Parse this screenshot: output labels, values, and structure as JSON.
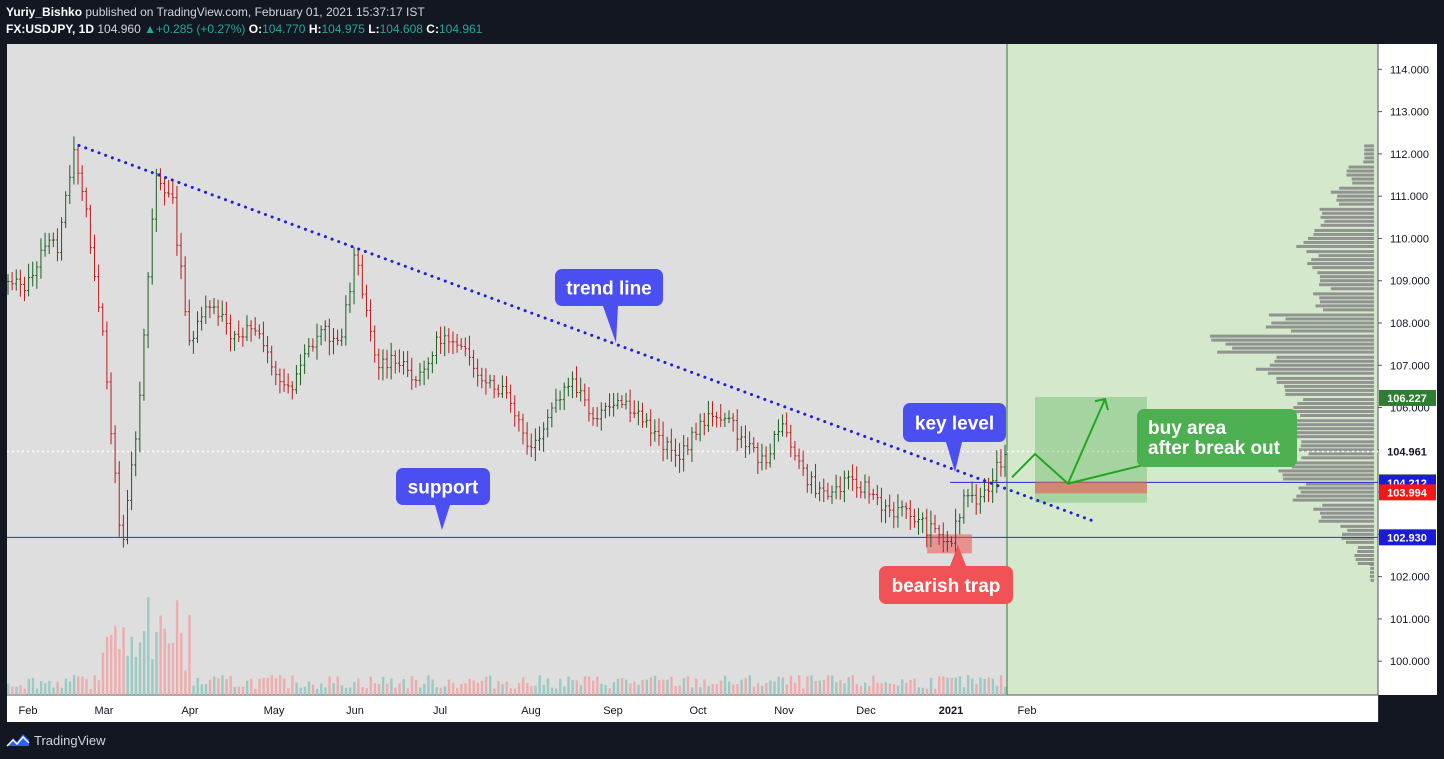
{
  "header": {
    "author": "Yuriy_Bishko",
    "published": " published on TradingView.com, February 01, 2021 15:37:17 IST",
    "symbol": "FX:USDJPY, 1D",
    "last": "104.960",
    "change": "+0.285 (+0.27%)",
    "o_label": "O:",
    "o": "104.770",
    "h_label": "H:",
    "h": "104.975",
    "l_label": "L:",
    "l": "104.608",
    "c_label": "C:",
    "c": "104.961"
  },
  "footer": {
    "brand": "TradingView"
  },
  "colors": {
    "background": "#131722",
    "plot": "#dedede",
    "future_zone": "#d4e8cc",
    "candle_up": "#1b5e20",
    "candle_down": "#b71c1c",
    "trend": "#1f20d6",
    "support_line": "#2a2ad8",
    "callout_blue": "#4b4ef0",
    "callout_red": "#f05255",
    "callout_green": "#4caf50"
  },
  "chart_data": {
    "type": "candlestick",
    "symbol": "FX:USDJPY",
    "timeframe": "1D",
    "ylim": [
      99.2,
      114.6
    ],
    "x_labels": [
      "Feb",
      "Mar",
      "Apr",
      "May",
      "Jun",
      "Jul",
      "Aug",
      "Sep",
      "Oct",
      "Nov",
      "Dec",
      "2021",
      "Feb"
    ],
    "y_ticks": [
      "100.000",
      "101.000",
      "102.000",
      "103.000",
      "104.000",
      "105.000",
      "106.000",
      "107.000",
      "108.000",
      "109.000",
      "110.000",
      "111.000",
      "112.000",
      "113.000",
      "114.000"
    ],
    "price_tags": [
      {
        "value": 106.227,
        "label": "106.227",
        "color": "#2e7d32"
      },
      {
        "value": 104.961,
        "label": "104.961",
        "color": "#ffffff"
      },
      {
        "value": 104.231,
        "label": "104.231",
        "color": "#555555"
      },
      {
        "value": 104.212,
        "label": "104.212",
        "color": "#1a1ad9"
      },
      {
        "value": 103.994,
        "label": "103.994",
        "color": "#f21818"
      },
      {
        "value": 102.93,
        "label": "102.930",
        "color": "#1a1ad9"
      }
    ],
    "price_path": [
      [
        "Feb",
        108.9
      ],
      [
        "Feb",
        109.9
      ],
      [
        "Feb",
        109.8
      ],
      [
        "Feb",
        112.2
      ],
      [
        "Feb",
        110.2
      ],
      [
        "Mar",
        107.6
      ],
      [
        "Mar",
        102.5
      ],
      [
        "Mar",
        105.8
      ],
      [
        "Mar",
        111.6
      ],
      [
        "Mar",
        110.8
      ],
      [
        "Apr",
        107.5
      ],
      [
        "Apr",
        108.6
      ],
      [
        "Apr",
        107.7
      ],
      [
        "Apr",
        107.9
      ],
      [
        "May",
        106.9
      ],
      [
        "May",
        106.3
      ],
      [
        "May",
        107.3
      ],
      [
        "May",
        107.9
      ],
      [
        "May",
        107.4
      ],
      [
        "Jun",
        109.6
      ],
      [
        "Jun",
        107.0
      ],
      [
        "Jun",
        107.2
      ],
      [
        "Jun",
        106.6
      ],
      [
        "Jul",
        107.7
      ],
      [
        "Jul",
        107.3
      ],
      [
        "Jul",
        106.7
      ],
      [
        "Jul",
        106.3
      ],
      [
        "Aug",
        105.0
      ],
      [
        "Aug",
        106.0
      ],
      [
        "Aug",
        106.7
      ],
      [
        "Aug",
        105.8
      ],
      [
        "Sep",
        106.2
      ],
      [
        "Sep",
        106.0
      ],
      [
        "Sep",
        105.3
      ],
      [
        "Sep",
        104.8
      ],
      [
        "Oct",
        105.5
      ],
      [
        "Oct",
        105.9
      ],
      [
        "Oct",
        105.3
      ],
      [
        "Oct",
        104.7
      ],
      [
        "Nov",
        105.6
      ],
      [
        "Nov",
        104.4
      ],
      [
        "Nov",
        103.9
      ],
      [
        "Nov",
        104.2
      ],
      [
        "Dec",
        104.1
      ],
      [
        "Dec",
        103.6
      ],
      [
        "Dec",
        103.5
      ],
      [
        "Dec",
        103.1
      ],
      [
        "2021",
        102.8
      ],
      [
        "2021",
        104.0
      ],
      [
        "2021",
        103.7
      ],
      [
        "2021",
        104.6
      ],
      [
        "2021",
        104.9
      ]
    ],
    "trend_line": {
      "from": [
        "Feb",
        112.2
      ],
      "to": [
        "Feb",
        103.3
      ]
    },
    "support_level": 102.93,
    "key_level": 104.23,
    "buy_area": {
      "low": 103.75,
      "high": 106.25
    },
    "projection": [
      104.35,
      104.9,
      104.2,
      106.2
    ],
    "annotations": [
      {
        "id": "trend",
        "text": "trend line",
        "style": "blue"
      },
      {
        "id": "support",
        "text": "support",
        "style": "blue"
      },
      {
        "id": "key",
        "text": "key level",
        "style": "blue"
      },
      {
        "id": "trap",
        "text": "bearish trap",
        "style": "red"
      },
      {
        "id": "buy",
        "text": "buy area\nafter break out",
        "style": "green"
      }
    ],
    "volume_profile": [
      {
        "price": 99.9,
        "size": 0
      },
      {
        "price": 102.1,
        "size": 4
      },
      {
        "price": 102.5,
        "size": 18
      },
      {
        "price": 103.0,
        "size": 30
      },
      {
        "price": 103.5,
        "size": 55
      },
      {
        "price": 104.0,
        "size": 80
      },
      {
        "price": 104.5,
        "size": 95
      },
      {
        "price": 105.0,
        "size": 70
      },
      {
        "price": 105.5,
        "size": 85
      },
      {
        "price": 106.0,
        "size": 75
      },
      {
        "price": 106.5,
        "size": 90
      },
      {
        "price": 107.0,
        "size": 110
      },
      {
        "price": 107.5,
        "size": 150
      },
      {
        "price": 108.0,
        "size": 95
      },
      {
        "price": 108.5,
        "size": 60
      },
      {
        "price": 109.0,
        "size": 50
      },
      {
        "price": 109.5,
        "size": 60
      },
      {
        "price": 110.0,
        "size": 70
      },
      {
        "price": 110.5,
        "size": 50
      },
      {
        "price": 111.0,
        "size": 40
      },
      {
        "price": 111.5,
        "size": 25
      },
      {
        "price": 112.0,
        "size": 10
      }
    ]
  }
}
